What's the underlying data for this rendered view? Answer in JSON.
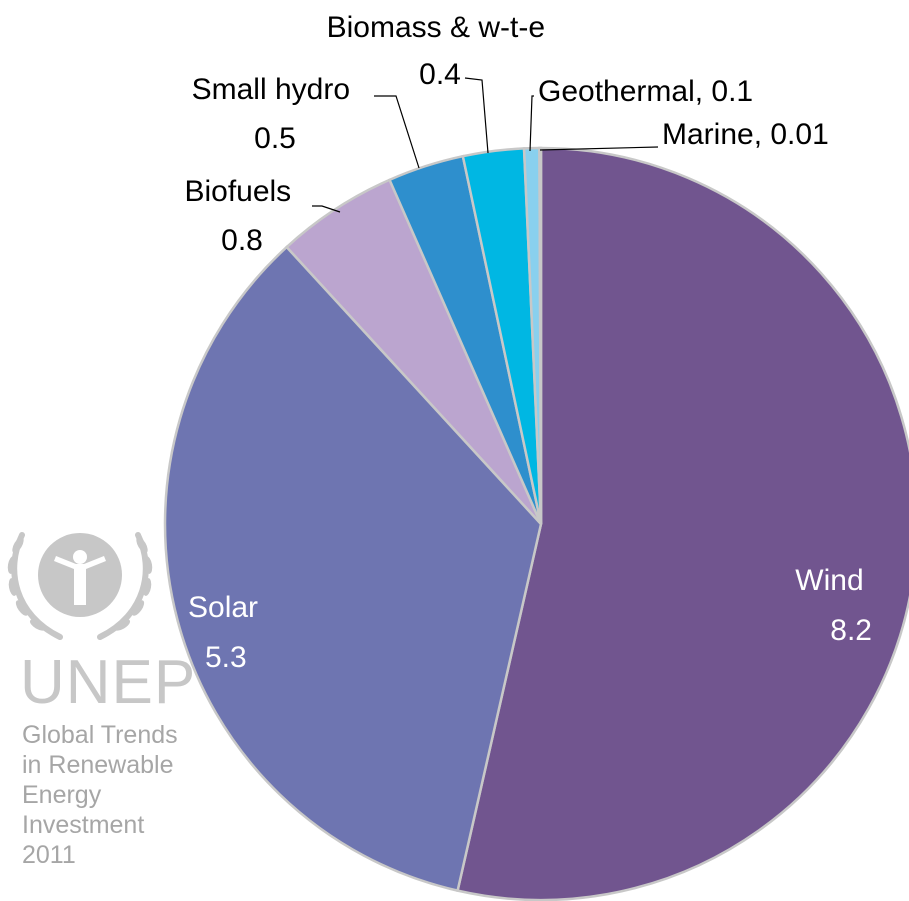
{
  "chart_data": {
    "type": "pie",
    "title": "",
    "series": [
      {
        "slices": [
          {
            "label": "Wind",
            "value": 8.2,
            "color": "#71558f",
            "display": "Wind\n8.2"
          },
          {
            "label": "Solar",
            "value": 5.3,
            "color": "#6e75b1",
            "display": "Solar\n5.3"
          },
          {
            "label": "Biofuels",
            "value": 0.8,
            "color": "#bba5cf",
            "display": "Biofuels\n0.8"
          },
          {
            "label": "Small hydro",
            "value": 0.5,
            "color": "#2e8fcd",
            "display": "Small hydro\n0.5"
          },
          {
            "label": "Biomass & w-t-e",
            "value": 0.4,
            "color": "#00b7e3",
            "display": "Biomass & w-t-e\n0.4"
          },
          {
            "label": "Geothermal",
            "value": 0.1,
            "color": "#89d0ee",
            "display": "Geothermal, 0.1"
          },
          {
            "label": "Marine",
            "value": 0.01,
            "color": "#bfe6f6",
            "display": "Marine, 0.01"
          }
        ]
      }
    ],
    "legend": "none (labels on slices)",
    "start_angle": "12 o'clock",
    "direction": "clockwise"
  },
  "branding": {
    "org": "UNEP",
    "logo_icon": "un-laurel-emblem-icon",
    "logo_color": "#c7c7c7",
    "caption_lines": [
      "Global Trends",
      "in Renewable",
      "Energy",
      "Investment",
      "2011"
    ],
    "caption_color": "#a6a6a6"
  }
}
